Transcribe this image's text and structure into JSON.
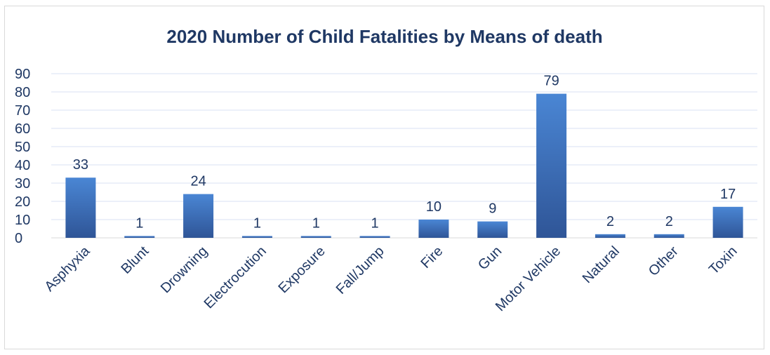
{
  "chart_data": {
    "type": "bar",
    "title": "2020 Number of Child Fatalities by Means of death",
    "xlabel": "",
    "ylabel": "",
    "ylim": [
      0,
      90
    ],
    "y_ticks": [
      0,
      10,
      20,
      30,
      40,
      50,
      60,
      70,
      80,
      90
    ],
    "grid": true,
    "legend": "none",
    "categories": [
      "Asphyxia",
      "Blunt",
      "Drowning",
      "Electrocution",
      "Exposure",
      "Fall/Jump",
      "Fire",
      "Gun",
      "Motor Vehicle",
      "Natural",
      "Other",
      "Toxin"
    ],
    "values": [
      33,
      1,
      24,
      1,
      1,
      1,
      10,
      9,
      79,
      2,
      2,
      17
    ],
    "colors": {
      "bar_top": "#4a86d4",
      "bar_bottom": "#2f5597",
      "text": "#1f3864",
      "grid": "#d9e2f3"
    }
  }
}
